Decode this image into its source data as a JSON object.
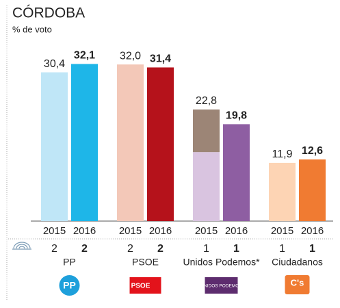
{
  "chart_data": {
    "type": "bar",
    "title": "CÓRDOBA",
    "subtitle": "% de voto",
    "categories": [
      "PP",
      "PSOE",
      "Unidos Podemos*",
      "Ciudadanos"
    ],
    "ylim": [
      0,
      40
    ],
    "series": [
      {
        "name": "2015",
        "values": [
          30.4,
          32.0,
          22.8,
          11.9
        ],
        "value_labels": [
          "30,4",
          "32,0",
          "22,8",
          "11,9"
        ],
        "colors": [
          "#bfe6f7",
          "#f3c8b8",
          "#d9c4e0",
          "#fdd4b4"
        ],
        "segments": {
          "2": [
            14.1,
            8.7
          ]
        },
        "segment_colors": {
          "2": [
            "#d9c4e0",
            "#9c8576"
          ]
        },
        "seats": [
          2,
          2,
          1,
          1
        ]
      },
      {
        "name": "2016",
        "values": [
          32.1,
          31.4,
          19.8,
          12.6
        ],
        "value_labels": [
          "32,1",
          "31,4",
          "19,8",
          "12,6"
        ],
        "colors": [
          "#1eb6e8",
          "#b5121b",
          "#8e5ea2",
          "#f07b32"
        ],
        "seats": [
          2,
          2,
          1,
          1
        ]
      }
    ],
    "logo_texts": [
      "PP",
      "PSOE",
      "UNIDOS PODEMOS",
      "C's"
    ],
    "logo_colors": [
      "#1ea0db",
      "#e3131b",
      "#5d2c6e",
      "#f07b32"
    ]
  }
}
